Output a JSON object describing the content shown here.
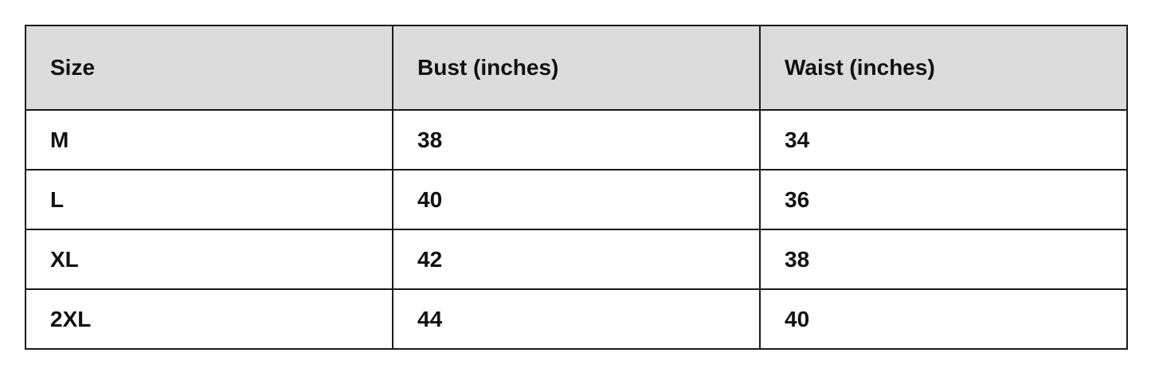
{
  "table": {
    "headers": [
      "Size",
      "Bust (inches)",
      "Waist (inches)"
    ],
    "rows": [
      [
        "M",
        "38",
        "34"
      ],
      [
        "L",
        "40",
        "36"
      ],
      [
        "XL",
        "42",
        "38"
      ],
      [
        "2XL",
        "44",
        "40"
      ]
    ]
  },
  "colors": {
    "header_bg": "#dcdcdc",
    "border": "#1a1a1a"
  }
}
